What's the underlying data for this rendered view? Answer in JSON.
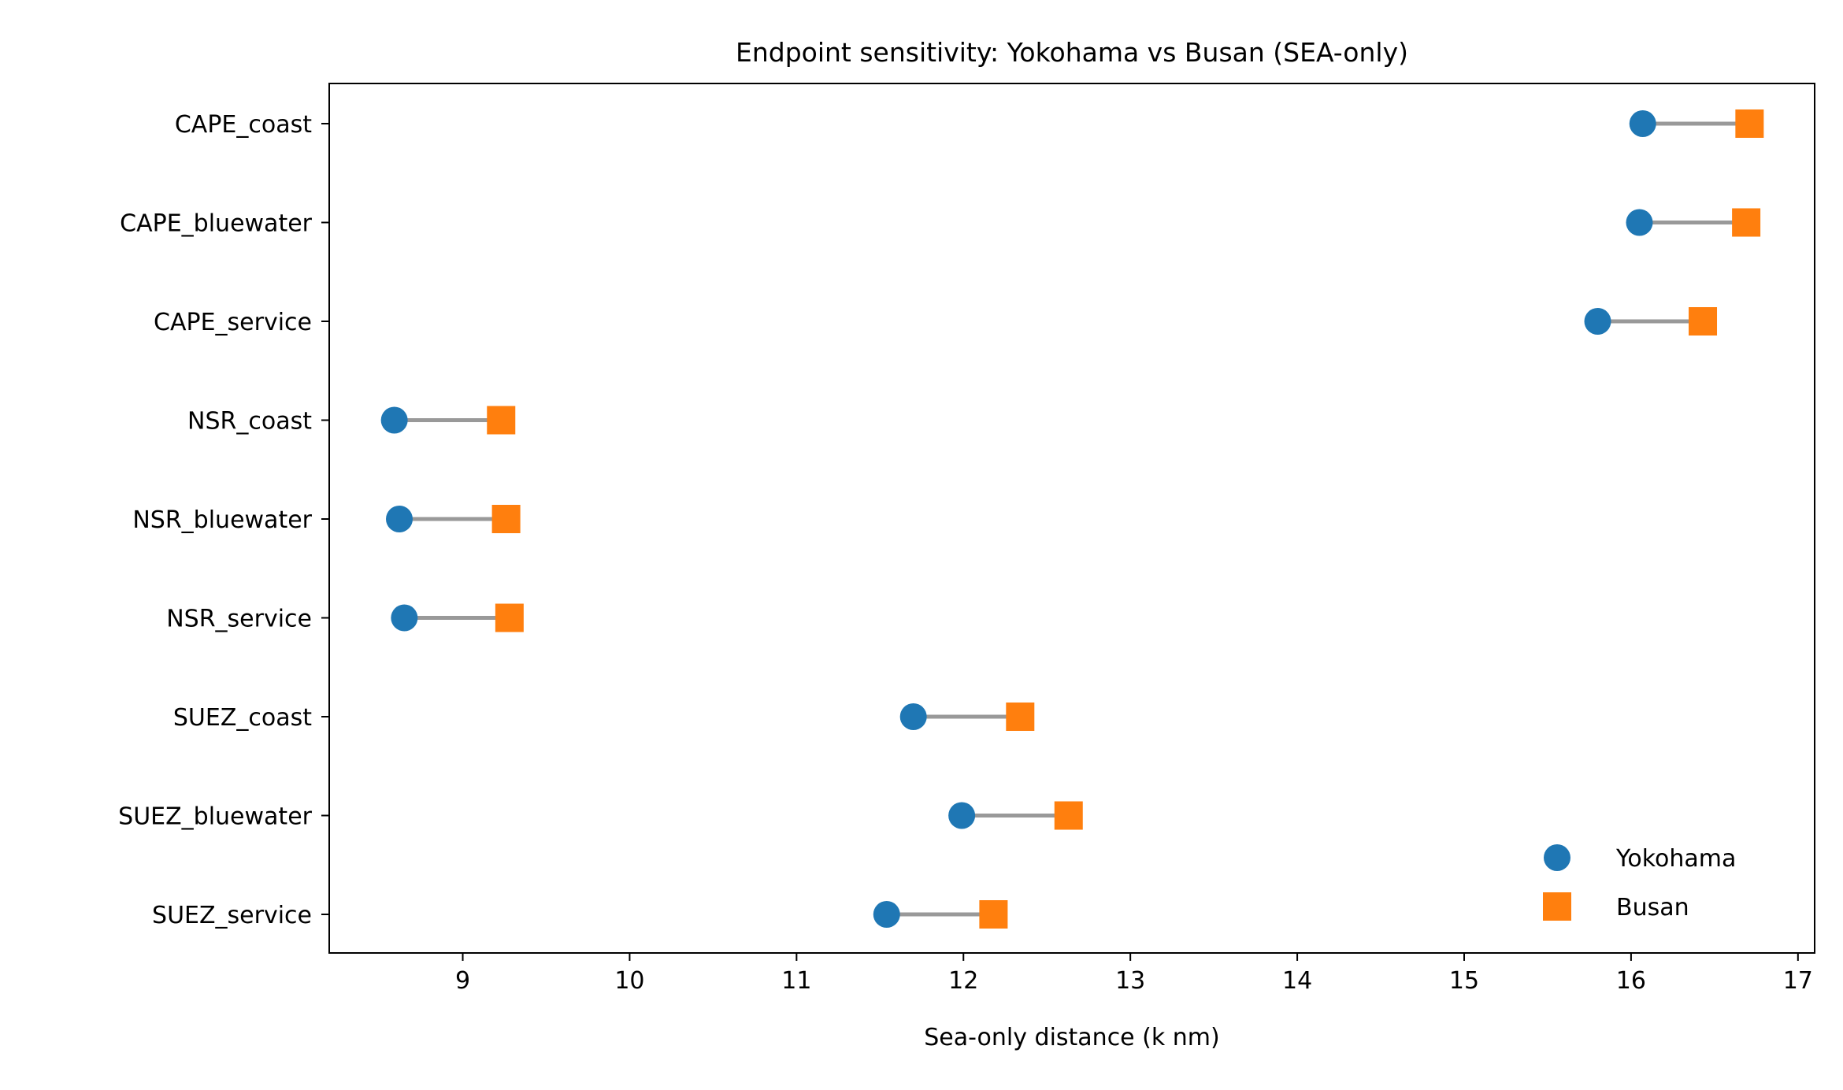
{
  "chart_data": {
    "type": "dumbbell",
    "title": "Endpoint sensitivity: Yokohama vs Busan (SEA-only)",
    "xlabel": "Sea-only distance (k nm)",
    "ylabel": "",
    "xlim": [
      8.2,
      17.1
    ],
    "xticks": [
      9,
      10,
      11,
      12,
      13,
      14,
      15,
      16,
      17
    ],
    "grid": false,
    "legend_position": "lower-right",
    "categories": [
      "CAPE_coast",
      "CAPE_bluewater",
      "CAPE_service",
      "NSR_coast",
      "NSR_bluewater",
      "NSR_service",
      "SUEZ_coast",
      "SUEZ_bluewater",
      "SUEZ_service"
    ],
    "series": [
      {
        "name": "Yokohama",
        "marker": "circle",
        "color": "#1f77b4",
        "values": [
          16.07,
          16.05,
          15.8,
          8.59,
          8.62,
          8.65,
          11.7,
          11.99,
          11.54
        ]
      },
      {
        "name": "Busan",
        "marker": "square",
        "color": "#ff7f0e",
        "values": [
          16.71,
          16.69,
          16.43,
          9.23,
          9.26,
          9.28,
          12.34,
          12.63,
          12.18
        ]
      }
    ],
    "connector_color": "#999999"
  }
}
